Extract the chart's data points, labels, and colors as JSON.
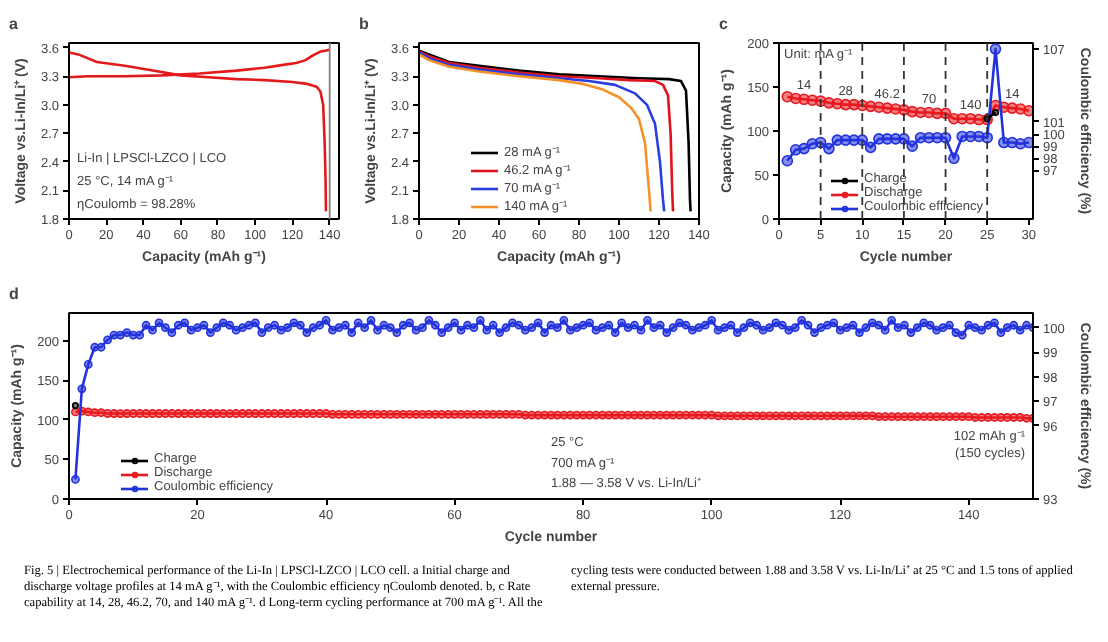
{
  "chart_data": [
    {
      "type": "line",
      "title": "a",
      "xlabel": "Capacity (mAh g⁻¹)",
      "ylabel": "Voltage vs.Li-In/Li⁺ (V)",
      "xlim": [
        0,
        145
      ],
      "xticks": [
        0,
        20,
        40,
        60,
        80,
        100,
        120,
        140
      ],
      "ylim": [
        1.8,
        3.65
      ],
      "yticks": [
        1.8,
        2.1,
        2.4,
        2.7,
        {
          "value": 3,
          "label": "3.0"
        },
        3.3,
        3.6
      ],
      "series": [
        {
          "color": "#e31a1c",
          "x": [
            0,
            5,
            15,
            30,
            45,
            60,
            75,
            90,
            105,
            120,
            128,
            133,
            135,
            136.5,
            137.3,
            137.8,
            138
          ],
          "values": [
            3.55,
            3.53,
            3.45,
            3.41,
            3.36,
            3.31,
            3.29,
            3.27,
            3.26,
            3.24,
            3.22,
            3.19,
            3.14,
            3.0,
            2.6,
            2.2,
            1.88
          ]
        },
        {
          "color": "#e31a1c",
          "x": [
            0,
            10,
            30,
            50,
            70,
            90,
            105,
            115,
            122,
            127,
            131,
            135,
            138,
            140
          ],
          "values": [
            3.29,
            3.3,
            3.3,
            3.31,
            3.33,
            3.36,
            3.39,
            3.42,
            3.44,
            3.47,
            3.52,
            3.56,
            3.57,
            3.58
          ]
        }
      ],
      "ref_lines": [
        {
          "axis": "x",
          "value": 140,
          "color": "#808080"
        }
      ],
      "annotations": [
        "Li-In | LPSCl-LZCO | LCO",
        "25 °C, 14 mA g⁻¹",
        "ηCoulomb = 98.28%"
      ]
    },
    {
      "type": "line",
      "title": "b",
      "xlabel": "Capacity (mAh g⁻¹)",
      "ylabel": "Voltage vs.Li-In/Li⁺ (V)",
      "xlim": [
        0,
        140
      ],
      "xticks": [
        0,
        20,
        40,
        60,
        80,
        100,
        120,
        140
      ],
      "ylim": [
        1.8,
        3.65
      ],
      "yticks": [
        1.8,
        2.1,
        2.4,
        2.7,
        {
          "value": 3,
          "label": "3.0"
        },
        3.3,
        3.6
      ],
      "legend": "bottom left",
      "series": [
        {
          "name": "28 mA g⁻¹",
          "color": "#000000",
          "x": [
            0,
            5,
            15,
            30,
            50,
            70,
            90,
            110,
            125,
            131,
            133.5,
            134.8,
            135.5,
            135.8
          ],
          "values": [
            3.57,
            3.53,
            3.45,
            3.41,
            3.36,
            3.32,
            3.3,
            3.28,
            3.27,
            3.25,
            3.15,
            2.6,
            2.0,
            1.88
          ]
        },
        {
          "name": "46.2 mA g⁻¹",
          "color": "#e0141e",
          "x": [
            0,
            5,
            15,
            30,
            50,
            70,
            90,
            105,
            118,
            122,
            124.5,
            125.8,
            126.6,
            127
          ],
          "values": [
            3.56,
            3.51,
            3.44,
            3.39,
            3.34,
            3.3,
            3.28,
            3.26,
            3.25,
            3.21,
            3.1,
            2.7,
            2.1,
            1.88
          ]
        },
        {
          "name": "70 mA g⁻¹",
          "color": "#2a3ee0",
          "x": [
            0,
            5,
            15,
            30,
            50,
            70,
            85,
            98,
            108,
            114,
            118,
            120.5,
            122,
            122.6
          ],
          "values": [
            3.55,
            3.49,
            3.42,
            3.37,
            3.32,
            3.28,
            3.25,
            3.21,
            3.12,
            3.0,
            2.8,
            2.4,
            2.0,
            1.88
          ]
        },
        {
          "name": "140 mA g⁻¹",
          "color": "#f5922a",
          "x": [
            0,
            5,
            15,
            30,
            50,
            70,
            82,
            92,
            100,
            106,
            110,
            113,
            115,
            115.8
          ],
          "values": [
            3.53,
            3.47,
            3.4,
            3.35,
            3.3,
            3.26,
            3.22,
            3.16,
            3.08,
            2.97,
            2.85,
            2.6,
            2.1,
            1.88
          ]
        }
      ]
    },
    {
      "type": "line",
      "title": "c",
      "xlabel": "Cycle number",
      "ylabel": "Capacity (mAh g⁻¹)",
      "y2label": "Coulombic efficiency (%)",
      "marker": "circle",
      "legend": "bottom left",
      "xlim": [
        0,
        30.5
      ],
      "xticks": [
        0,
        5,
        10,
        15,
        20,
        25,
        30
      ],
      "ylim": [
        0,
        200
      ],
      "yticks": [
        0,
        50,
        100,
        150,
        200
      ],
      "y2lim": [
        93,
        107.5
      ],
      "y2ticks": [
        97,
        98,
        99,
        100,
        101,
        107
      ],
      "x": [
        1,
        2,
        3,
        4,
        5,
        6,
        7,
        8,
        9,
        10,
        11,
        12,
        13,
        14,
        15,
        16,
        17,
        18,
        19,
        20,
        21,
        22,
        23,
        24,
        25,
        26,
        27,
        28,
        29,
        30
      ],
      "series": [
        {
          "name": "Charge",
          "color": "#000000",
          "values": [
            null,
            null,
            null,
            null,
            null,
            null,
            null,
            null,
            null,
            null,
            null,
            null,
            null,
            null,
            null,
            null,
            null,
            null,
            null,
            null,
            null,
            null,
            null,
            null,
            114,
            121,
            null,
            null,
            null,
            null
          ]
        },
        {
          "name": "Discharge",
          "color": "#e8191f",
          "values": [
            139,
            137,
            136,
            135,
            134,
            132,
            131,
            130,
            130,
            129,
            128,
            127,
            126,
            125,
            124,
            122,
            121,
            121,
            120,
            120,
            114,
            114,
            114,
            113,
            113,
            129,
            127,
            126,
            125,
            123
          ]
        },
        {
          "name": "Coulombic efficiency",
          "color": "#2233dd",
          "axis": "y2",
          "values": [
            97.8,
            98.7,
            98.8,
            99.2,
            99.3,
            98.8,
            99.5,
            99.5,
            99.5,
            99.5,
            98.9,
            99.6,
            99.6,
            99.6,
            99.6,
            99.0,
            99.7,
            99.7,
            99.7,
            99.7,
            98.0,
            99.8,
            99.8,
            99.8,
            99.7,
            107.0,
            99.3,
            99.3,
            99.2,
            99.3
          ]
        }
      ],
      "ref_lines": [
        {
          "axis": "x",
          "value": 5,
          "line_style": "dashed",
          "color": "#333333"
        },
        {
          "axis": "x",
          "value": 10,
          "line_style": "dashed",
          "color": "#333333"
        },
        {
          "axis": "x",
          "value": 15,
          "line_style": "dashed",
          "color": "#333333"
        },
        {
          "axis": "x",
          "value": 20,
          "line_style": "dashed",
          "color": "#333333"
        },
        {
          "axis": "x",
          "value": 25,
          "line_style": "dashed",
          "color": "#333333"
        }
      ],
      "annotations": [
        "Unit: mA g⁻¹",
        {
          "text": "14",
          "x": 3,
          "y": 136
        },
        {
          "text": "28",
          "x": 8,
          "y": 130
        },
        {
          "text": "46.2",
          "x": 13,
          "y": 126
        },
        {
          "text": "70",
          "x": 18,
          "y": 121
        },
        {
          "text": "140",
          "x": 23,
          "y": 114
        },
        {
          "text": "14",
          "x": 28,
          "y": 126
        }
      ]
    },
    {
      "type": "line",
      "title": "d",
      "xlabel": "Cycle number",
      "ylabel": "Capacity (mAh g⁻¹)",
      "y2label": "Coulombic efficiency (%)",
      "marker": "circle",
      "legend": "bottom left",
      "xlim": [
        0,
        150
      ],
      "xticks": [
        0,
        20,
        40,
        60,
        80,
        100,
        120,
        140
      ],
      "ylim": [
        0,
        235
      ],
      "yticks": [
        0,
        50,
        100,
        150,
        200
      ],
      "y2lim": [
        93,
        100.6
      ],
      "y2ticks": [
        93,
        96,
        97,
        98,
        99,
        100
      ],
      "x": [
        1,
        2,
        3,
        4,
        5,
        6,
        7,
        8,
        9,
        10,
        11,
        12,
        13,
        14,
        15,
        16,
        17,
        18,
        19,
        20,
        21,
        22,
        23,
        24,
        25,
        26,
        27,
        28,
        29,
        30,
        31,
        32,
        33,
        34,
        35,
        36,
        37,
        38,
        39,
        40,
        41,
        42,
        43,
        44,
        45,
        46,
        47,
        48,
        49,
        50,
        51,
        52,
        53,
        54,
        55,
        56,
        57,
        58,
        59,
        60,
        61,
        62,
        63,
        64,
        65,
        66,
        67,
        68,
        69,
        70,
        71,
        72,
        73,
        74,
        75,
        76,
        77,
        78,
        79,
        80,
        81,
        82,
        83,
        84,
        85,
        86,
        87,
        88,
        89,
        90,
        91,
        92,
        93,
        94,
        95,
        96,
        97,
        98,
        99,
        100,
        101,
        102,
        103,
        104,
        105,
        106,
        107,
        108,
        109,
        110,
        111,
        112,
        113,
        114,
        115,
        116,
        117,
        118,
        119,
        120,
        121,
        122,
        123,
        124,
        125,
        126,
        127,
        128,
        129,
        130,
        131,
        132,
        133,
        134,
        135,
        136,
        137,
        138,
        139,
        140,
        141,
        142,
        143,
        144,
        145,
        146,
        147,
        148,
        149,
        150
      ],
      "series": [
        {
          "name": "Charge",
          "color": "#000000",
          "values": [
            118,
            null,
            null,
            null,
            null,
            null,
            null,
            null,
            null,
            null,
            null,
            null,
            null,
            null,
            null,
            null,
            null,
            null,
            null,
            null,
            null,
            null,
            null,
            null,
            null,
            null,
            null,
            null,
            null,
            null,
            null,
            null,
            null,
            null,
            null,
            null,
            null,
            null,
            null,
            null,
            null,
            null,
            null,
            null,
            null,
            null,
            null,
            null,
            null,
            null,
            null,
            null,
            null,
            null,
            null,
            null,
            null,
            null,
            null,
            null,
            null,
            null,
            null,
            null,
            null,
            null,
            null,
            null,
            null,
            null,
            null,
            null,
            null,
            null,
            null,
            null,
            null,
            null,
            null,
            null,
            null,
            null,
            null,
            null,
            null,
            null,
            null,
            null,
            null,
            null,
            null,
            null,
            null,
            null,
            null,
            null,
            null,
            null,
            null,
            null,
            null,
            null,
            null,
            null,
            null,
            null,
            null,
            null,
            null,
            null,
            null,
            null,
            null,
            null,
            null,
            null,
            null,
            null,
            null,
            null,
            null,
            null,
            null,
            null,
            null,
            null,
            null,
            null,
            null,
            null,
            null,
            null,
            null,
            null,
            null,
            null,
            null,
            null,
            null,
            null,
            null,
            null,
            null,
            null,
            null,
            null,
            null,
            null,
            null,
            null
          ]
        },
        {
          "name": "Discharge",
          "color": "#e8191f",
          "values": [
            110,
            111,
            110,
            109,
            109,
            108,
            108,
            108,
            108,
            108,
            108,
            108,
            108,
            108,
            108,
            108,
            108,
            108,
            108,
            108,
            108,
            108,
            108,
            108,
            108,
            108,
            108,
            108,
            108,
            108,
            108,
            108,
            108,
            108,
            108,
            108,
            108,
            108,
            108,
            108,
            107,
            107,
            107,
            107,
            107,
            107,
            107,
            107,
            107,
            107,
            107,
            107,
            107,
            107,
            107,
            107,
            107,
            107,
            107,
            107,
            107,
            107,
            107,
            107,
            107,
            107,
            107,
            107,
            107,
            107,
            106,
            106,
            106,
            106,
            106,
            106,
            106,
            106,
            106,
            106,
            106,
            106,
            106,
            106,
            106,
            106,
            106,
            106,
            106,
            106,
            106,
            106,
            106,
            106,
            106,
            106,
            106,
            106,
            106,
            106,
            105,
            105,
            105,
            105,
            105,
            105,
            105,
            105,
            105,
            105,
            105,
            105,
            105,
            105,
            105,
            105,
            105,
            105,
            105,
            105,
            105,
            105,
            105,
            105,
            105,
            104,
            104,
            104,
            104,
            104,
            104,
            104,
            104,
            104,
            104,
            104,
            104,
            104,
            104,
            104,
            103,
            103,
            103,
            103,
            103,
            103,
            103,
            103,
            102,
            102
          ]
        },
        {
          "name": "Coulombic efficiency",
          "color": "#2233dd",
          "axis": "y2",
          "values": [
            93.8,
            97.5,
            98.5,
            99.2,
            99.2,
            99.5,
            99.7,
            99.7,
            99.8,
            99.7,
            99.7,
            100.1,
            99.9,
            100.2,
            100.0,
            99.8,
            100.1,
            100.2,
            99.9,
            100.0,
            100.1,
            99.8,
            100.0,
            100.2,
            100.1,
            99.9,
            100.0,
            100.1,
            100.2,
            99.8,
            100.0,
            100.1,
            99.9,
            100.0,
            100.2,
            100.1,
            99.8,
            100.0,
            100.1,
            100.3,
            99.9,
            100.0,
            100.1,
            99.8,
            100.2,
            100.0,
            100.3,
            99.9,
            100.1,
            100.0,
            99.8,
            100.1,
            100.2,
            99.9,
            100.0,
            100.3,
            100.1,
            99.8,
            100.0,
            100.2,
            99.9,
            100.1,
            100.0,
            100.3,
            99.9,
            100.1,
            99.8,
            100.0,
            100.2,
            100.1,
            99.9,
            100.0,
            100.2,
            99.8,
            100.1,
            100.0,
            100.3,
            99.9,
            100.0,
            100.1,
            100.2,
            99.9,
            100.0,
            100.1,
            99.8,
            100.2,
            100.0,
            100.1,
            99.9,
            100.3,
            100.0,
            100.1,
            99.8,
            100.0,
            100.2,
            100.1,
            99.9,
            100.0,
            100.1,
            100.3,
            99.9,
            100.0,
            100.1,
            99.8,
            100.0,
            100.2,
            100.1,
            99.9,
            100.0,
            100.2,
            100.1,
            99.9,
            100.0,
            100.3,
            100.1,
            99.8,
            100.0,
            100.1,
            100.2,
            99.9,
            100.0,
            100.1,
            99.8,
            100.0,
            100.2,
            100.1,
            99.9,
            100.3,
            100.0,
            100.1,
            99.8,
            100.0,
            100.2,
            100.1,
            99.9,
            100.0,
            100.1,
            99.8,
            99.7,
            100.1,
            100.0,
            99.9,
            100.1,
            100.2,
            99.8,
            100.0,
            100.1,
            99.9,
            100.1,
            100.0
          ]
        }
      ],
      "annotations": [
        "25 °C",
        "700 mA g⁻¹",
        "1.88 — 3.58 V vs. Li-In/Li⁺",
        {
          "text": "102 mAh g⁻¹\n(150 cycles)",
          "x": 150,
          "y": 102
        }
      ]
    },
    {
      "type": "other",
      "annotations": [
        "Fig. 5 | Electrochemical performance of the Li-In | LPSCl-LZCO | LCO cell. a Initial charge and discharge voltage profiles at 14 mA g⁻¹, with the Coulombic efficiency ηCoulomb denoted. b, c Rate capability at 14, 28, 46.2, 70, and 140 mA g⁻¹. d Long-term cycling performance at 700 mA g⁻¹. All the cycling tests were conducted between 1.88 and 3.58 V vs. Li-In/Li⁺ at 25 °C and 1.5 tons of applied external pressure."
      ]
    }
  ]
}
